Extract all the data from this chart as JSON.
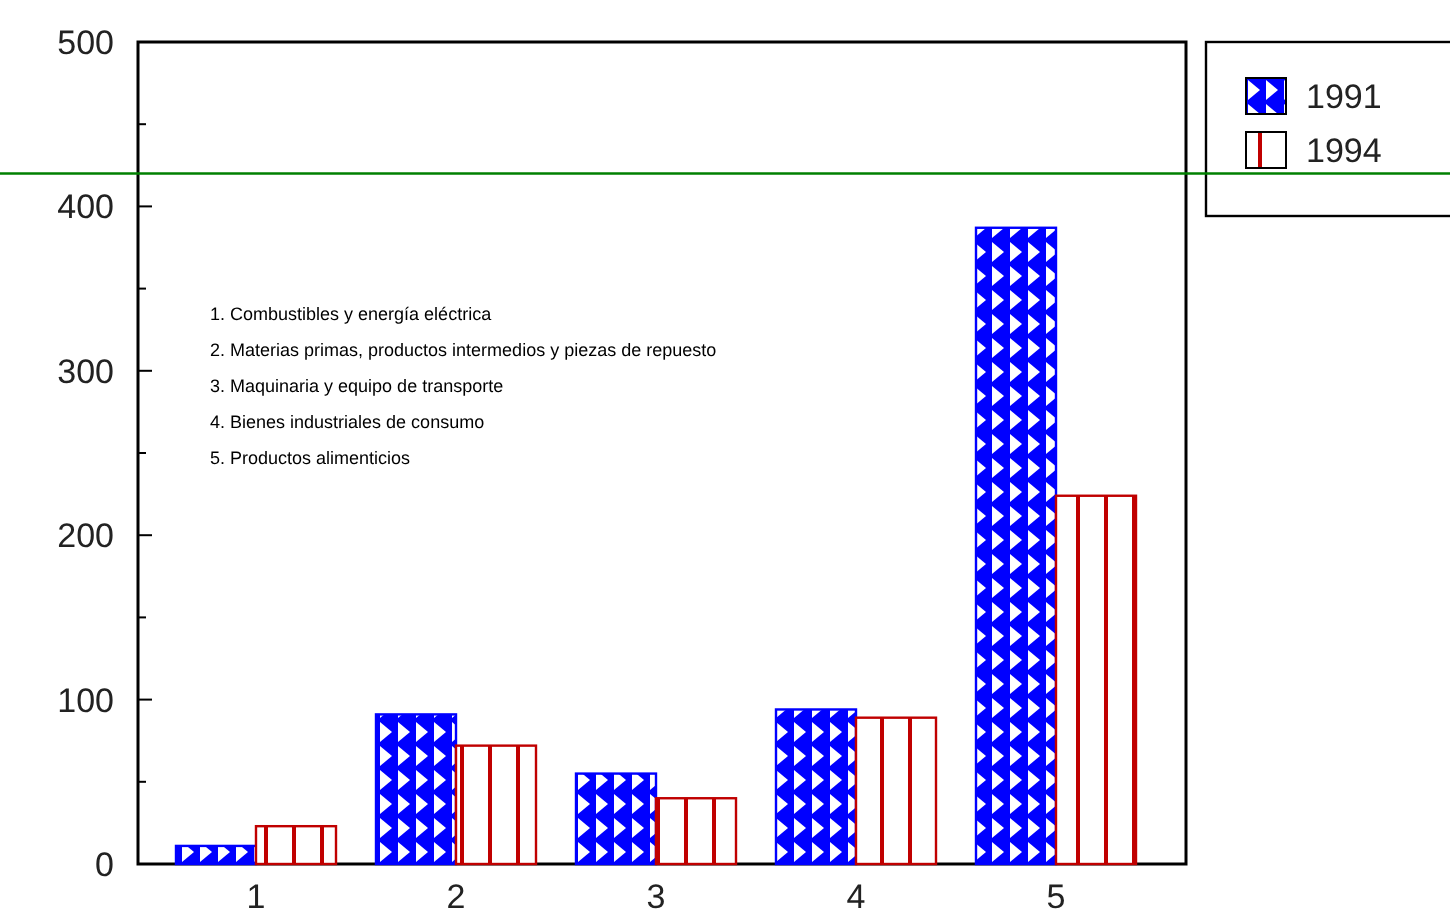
{
  "chart_data": {
    "type": "bar",
    "categories": [
      "1",
      "2",
      "3",
      "4",
      "5"
    ],
    "series": [
      {
        "name": "1991",
        "color": "#0000ff",
        "values": [
          11,
          91,
          55,
          94,
          387
        ]
      },
      {
        "name": "1994",
        "color": "#c00000",
        "values": [
          23,
          72,
          40,
          89,
          224
        ]
      }
    ],
    "ylim": [
      0,
      500
    ],
    "yticks": [
      0,
      {
        "value": 50,
        "label": null
      },
      100,
      {
        "value": 150,
        "label": null
      },
      200,
      {
        "value": 250,
        "label": null
      },
      300,
      {
        "value": 350,
        "label": null
      },
      400,
      {
        "value": 450,
        "label": null
      },
      500
    ],
    "ref_lines": [
      {
        "axis": "y",
        "value": 420,
        "color": "#008000"
      }
    ],
    "annotations": [
      "1. Combustibles y energía eléctrica",
      "2. Materias primas, productos intermedios y piezas de repuesto",
      "3. Maquinaria y equipo de transporte",
      "4. Bienes industriales de consumo",
      "5. Productos alimenticios"
    ],
    "legend": "top right",
    "grid": false
  }
}
